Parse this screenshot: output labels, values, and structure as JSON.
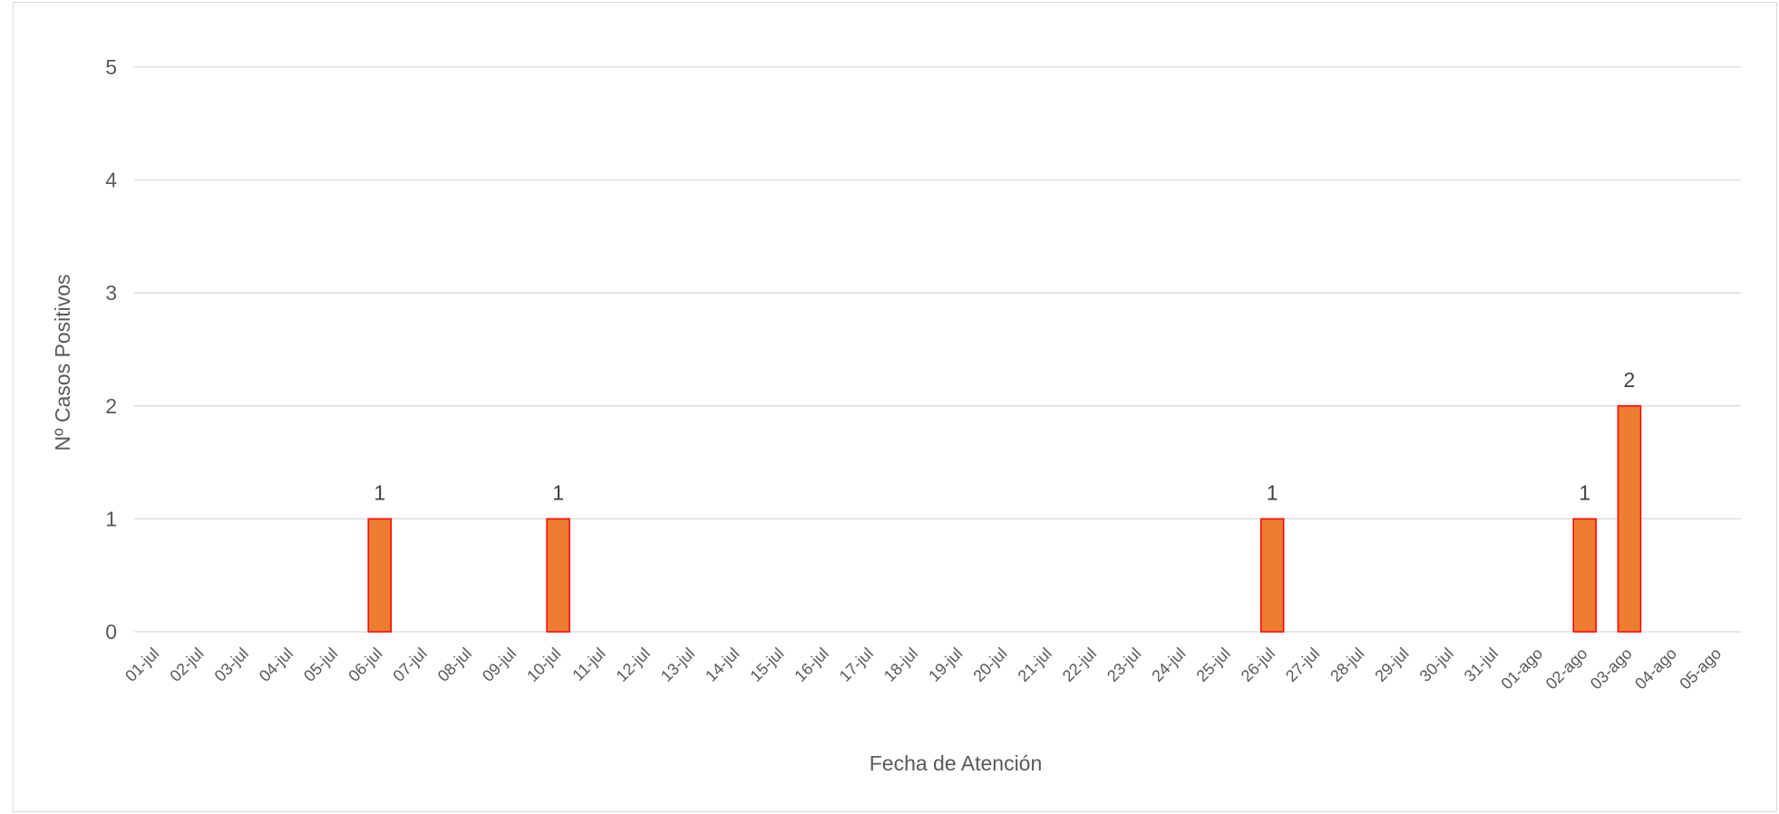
{
  "chart_data": {
    "type": "bar",
    "title": "",
    "xlabel": "Fecha de Atención",
    "ylabel": "Nº  Casos Positivos",
    "ylim": [
      0,
      5
    ],
    "yticks": [
      "0",
      "1",
      "2",
      "3",
      "4",
      "5"
    ],
    "grid": true,
    "categories": [
      "01-jul",
      "02-jul",
      "03-jul",
      "04-jul",
      "05-jul",
      "06-jul",
      "07-jul",
      "08-jul",
      "09-jul",
      "10-jul",
      "11-jul",
      "12-jul",
      "13-jul",
      "14-jul",
      "15-jul",
      "16-jul",
      "17-jul",
      "18-jul",
      "19-jul",
      "20-jul",
      "21-jul",
      "22-jul",
      "23-jul",
      "24-jul",
      "25-jul",
      "26-jul",
      "27-jul",
      "28-jul",
      "29-jul",
      "30-jul",
      "31-jul",
      "01-ago",
      "02-ago",
      "03-ago",
      "04-ago",
      "05-ago"
    ],
    "values": [
      0,
      0,
      0,
      0,
      0,
      1,
      0,
      0,
      0,
      1,
      0,
      0,
      0,
      0,
      0,
      0,
      0,
      0,
      0,
      0,
      0,
      0,
      0,
      0,
      0,
      1,
      0,
      0,
      0,
      0,
      0,
      0,
      1,
      2,
      0,
      0
    ],
    "data_labels": [
      {
        "category": "06-jul",
        "text": "1"
      },
      {
        "category": "10-jul",
        "text": "1"
      },
      {
        "category": "26-jul",
        "text": "1"
      },
      {
        "category": "02-ago",
        "text": "1"
      },
      {
        "category": "03-ago",
        "text": "2"
      }
    ],
    "bar_fill": "#ED7D31",
    "bar_stroke": "#FF0000"
  }
}
